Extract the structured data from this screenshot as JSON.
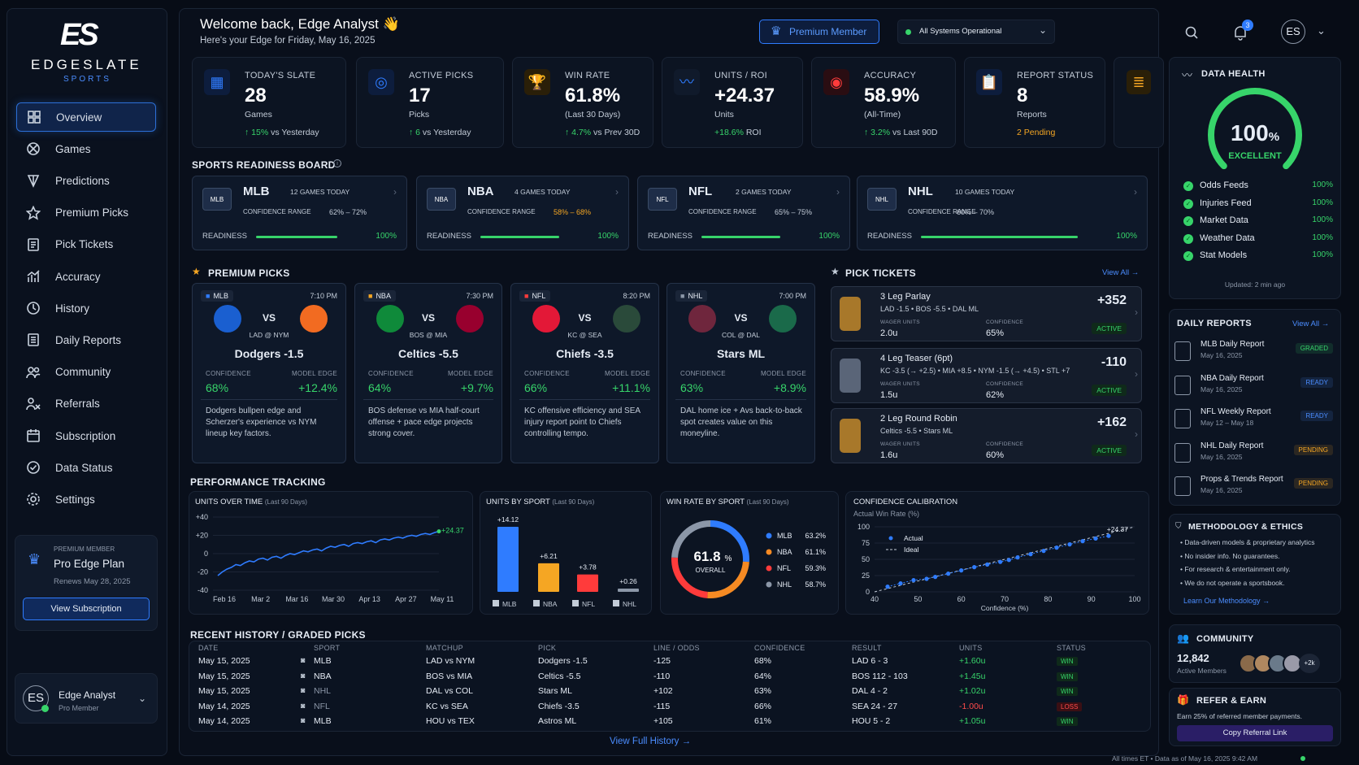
{
  "brand": {
    "logo": "ES",
    "name": "EDGESLATE",
    "sub": "SPORTS"
  },
  "nav": [
    {
      "label": "Overview",
      "icon": "grid-icon"
    },
    {
      "label": "Games",
      "icon": "games-icon"
    },
    {
      "label": "Predictions",
      "icon": "target-icon"
    },
    {
      "label": "Premium Picks",
      "icon": "star-icon"
    },
    {
      "label": "Pick Tickets",
      "icon": "ticket-icon"
    },
    {
      "label": "Accuracy",
      "icon": "chart-icon"
    },
    {
      "label": "History",
      "icon": "clock-icon"
    },
    {
      "label": "Daily Reports",
      "icon": "document-icon"
    },
    {
      "label": "Community",
      "icon": "users-icon"
    },
    {
      "label": "Referrals",
      "icon": "referral-icon"
    },
    {
      "label": "Subscription",
      "icon": "calendar-icon"
    },
    {
      "label": "Data Status",
      "icon": "check-circle-icon"
    },
    {
      "label": "Settings",
      "icon": "gear-icon"
    }
  ],
  "plan": {
    "kicker": "PREMIUM MEMBER",
    "name": "Pro Edge Plan",
    "renews": "Renews May 28, 2025",
    "button": "View Subscription"
  },
  "user": {
    "initials": "ES",
    "name": "Edge Analyst",
    "role": "Pro Member"
  },
  "header": {
    "welcome": "Welcome back, Edge Analyst 👋",
    "subtitle": "Here's your Edge for Friday, May 16, 2025",
    "premium": "Premium Member",
    "systems": "All Systems Operational",
    "notif_count": "3",
    "avatar": "ES"
  },
  "stats": [
    {
      "label": "TODAY'S SLATE",
      "value": "28",
      "unit": "Games",
      "change": "↑ 15%",
      "rest": " vs Yesterday",
      "icon": "calendar-icon"
    },
    {
      "label": "ACTIVE PICKS",
      "value": "17",
      "unit": "Picks",
      "change": "↑ 6",
      "rest": " vs Yesterday",
      "icon": "target-icon"
    },
    {
      "label": "WIN RATE",
      "value": "61.8%",
      "unit": "(Last 30 Days)",
      "change": "↑ 4.7%",
      "rest": " vs Prev 30D",
      "icon": "trophy-icon"
    },
    {
      "label": "UNITS / ROI",
      "value": "+24.37",
      "unit": "Units",
      "change": "+18.6%",
      "rest": " ROI",
      "icon": "pulse-icon"
    },
    {
      "label": "ACCURACY",
      "value": "58.9%",
      "unit": "(All-Time)",
      "change": "↑ 3.2%",
      "rest": " vs Last 90D",
      "icon": "bullseye-icon"
    },
    {
      "label": "REPORT STATUS",
      "value": "8",
      "unit": "Reports",
      "change": "2 Pending",
      "rest": "",
      "icon": "clipboard-icon"
    }
  ],
  "readiness": {
    "title": "SPORTS READINESS BOARD",
    "conf_label": "CONFIDENCE RANGE",
    "ready_label": "READINESS",
    "sports": [
      {
        "name": "MLB",
        "games": "12 GAMES TODAY",
        "range": "62% – 72%",
        "readiness": 100,
        "readiness_label": "100%"
      },
      {
        "name": "NBA",
        "games": "4 GAMES TODAY",
        "range": "58% – 68%",
        "readiness": 100,
        "readiness_label": "100%"
      },
      {
        "name": "NFL",
        "games": "2 GAMES TODAY",
        "range": "65% – 75%",
        "readiness": 100,
        "readiness_label": "100%"
      },
      {
        "name": "NHL",
        "games": "10 GAMES TODAY",
        "range": "60% – 70%",
        "readiness": 100,
        "readiness_label": "100%"
      }
    ]
  },
  "premium_picks": {
    "title": "PREMIUM PICKS",
    "conf_label": "CONFIDENCE",
    "edge_label": "MODEL EDGE",
    "vs": "VS",
    "items": [
      {
        "sport": "MLB",
        "time": "7:10 PM",
        "matchup": "LAD @ NYM",
        "line": "Dodgers -1.5",
        "confidence": "68%",
        "edge": "+12.4%",
        "desc": "Dodgers bullpen edge and Scherzer's experience vs NYM lineup key factors."
      },
      {
        "sport": "NBA",
        "time": "7:30 PM",
        "matchup": "BOS @ MIA",
        "line": "Celtics -5.5",
        "confidence": "64%",
        "edge": "+9.7%",
        "desc": "BOS defense vs MIA half-court offense + pace edge projects strong cover."
      },
      {
        "sport": "NFL",
        "time": "8:20 PM",
        "matchup": "KC @ SEA",
        "line": "Chiefs -3.5",
        "confidence": "66%",
        "edge": "+11.1%",
        "desc": "KC offensive efficiency and SEA injury report point to Chiefs controlling tempo."
      },
      {
        "sport": "NHL",
        "time": "7:00 PM",
        "matchup": "COL @ DAL",
        "line": "Stars ML",
        "confidence": "63%",
        "edge": "+8.9%",
        "desc": "DAL home ice + Avs back-to-back spot creates value on this moneyline."
      }
    ]
  },
  "tickets": {
    "title": "PICK TICKETS",
    "view_all": "View All →",
    "wager_label": "WAGER UNITS",
    "conf_label": "CONFIDENCE",
    "items": [
      {
        "name": "3 Leg Parlay",
        "legs": "LAD -1.5  •  BOS -5.5  •  DAL ML",
        "odds": "+352",
        "units": "2.0u",
        "confidence": "65%",
        "status": "ACTIVE"
      },
      {
        "name": "4 Leg Teaser (6pt)",
        "legs": "KC -3.5 (→ +2.5)  •  MIA +8.5  •  NYM -1.5 (→ +4.5)  •  STL +7",
        "odds": "-110",
        "units": "1.5u",
        "confidence": "62%",
        "status": "ACTIVE"
      },
      {
        "name": "2 Leg Round Robin",
        "legs": "Celtics -5.5  •  Stars ML",
        "odds": "+162",
        "units": "1.6u",
        "confidence": "60%",
        "status": "ACTIVE"
      }
    ]
  },
  "data_health": {
    "title": "DATA HEALTH",
    "score": "100",
    "score_unit": "%",
    "score_fraction": 1.0,
    "grade": "EXCELLENT",
    "feeds": [
      {
        "label": "Odds Feeds",
        "value": "100%"
      },
      {
        "label": "Injuries Feed",
        "value": "100%"
      },
      {
        "label": "Market Data",
        "value": "100%"
      },
      {
        "label": "Weather Data",
        "value": "100%"
      },
      {
        "label": "Stat Models",
        "value": "100%"
      }
    ],
    "updated": "Updated: 2 min ago"
  },
  "daily_reports": {
    "title": "DAILY REPORTS",
    "view_all": "View All →",
    "items": [
      {
        "name": "MLB Daily Report",
        "date": "May 16, 2025",
        "status": "GRADED",
        "color": "#37d46a"
      },
      {
        "name": "NBA Daily Report",
        "date": "May 16, 2025",
        "status": "READY",
        "color": "#4b8dff"
      },
      {
        "name": "NFL Weekly Report",
        "date": "May 12 – May 18",
        "status": "READY",
        "color": "#4b8dff"
      },
      {
        "name": "NHL Daily Report",
        "date": "May 16, 2025",
        "status": "PENDING",
        "color": "#f5a623"
      },
      {
        "name": "Props & Trends Report",
        "date": "May 16, 2025",
        "status": "PENDING",
        "color": "#f5a623"
      }
    ]
  },
  "methodology": {
    "title": "METHODOLOGY & ETHICS",
    "items": [
      "• Data-driven models & proprietary analytics",
      "• No insider info. No guarantees.",
      "• For research & entertainment only.",
      "• We do not operate a sportsbook."
    ],
    "link": "Learn Our Methodology →"
  },
  "community": {
    "title": "COMMUNITY",
    "count": "12,842",
    "label": "Active Members",
    "more": "+2k"
  },
  "refer": {
    "title": "REFER & EARN",
    "text": "Earn 25% of referred member payments.",
    "button": "Copy Referral Link"
  },
  "performance": {
    "title": "PERFORMANCE TRACKING",
    "units_title": "UNITS OVER TIME",
    "sport_title": "UNITS BY SPORT",
    "winrate_title": "WIN RATE BY SPORT",
    "calib_title": "CONFIDENCE CALIBRATION",
    "period": "(Last 90 Days)",
    "calib_sub": "Actual Win Rate (%)"
  },
  "chart_data": [
    {
      "type": "line",
      "title": "UNITS OVER TIME",
      "x_ticks": [
        "Feb 16",
        "Mar 2",
        "Mar 16",
        "Mar 30",
        "Apr 13",
        "Apr 27",
        "May 11"
      ],
      "y_ticks": [
        "+40",
        "+20",
        "0",
        "-20",
        "-40"
      ],
      "ylim": [
        -40,
        40
      ],
      "values": [
        -24,
        -20,
        -17,
        -15,
        -12,
        -13,
        -10,
        -8,
        -9,
        -6,
        -5,
        -7,
        -4,
        -3,
        -5,
        -2,
        0,
        -1,
        1,
        3,
        2,
        4,
        5,
        3,
        6,
        8,
        7,
        9,
        10,
        8,
        11,
        12,
        11,
        13,
        14,
        12,
        15,
        16,
        15,
        17,
        18,
        17,
        19,
        20,
        19,
        21,
        22,
        21,
        23,
        24.37
      ],
      "end_label": "+24.37"
    },
    {
      "type": "bar",
      "title": "UNITS BY SPORT",
      "categories": [
        "MLB",
        "NBA",
        "NFL",
        "NHL"
      ],
      "values": [
        14.12,
        6.21,
        3.78,
        0.26
      ],
      "labels": [
        "+14.12",
        "+6.21",
        "+3.78",
        "+0.26"
      ],
      "colors": [
        "#2f7cff",
        "#f5a623",
        "#ff3b3b",
        "#8c97a8"
      ]
    },
    {
      "type": "pie",
      "title": "WIN RATE BY SPORT",
      "center_value": "61.8",
      "center_unit": "%",
      "center_label": "OVERALL",
      "legend": [
        {
          "name": "MLB",
          "value": 63.2,
          "label": "63.2%",
          "color": "#2f7cff"
        },
        {
          "name": "NBA",
          "value": 61.1,
          "label": "61.1%",
          "color": "#f58a23"
        },
        {
          "name": "NFL",
          "value": 59.3,
          "label": "59.3%",
          "color": "#ff3b3b"
        },
        {
          "name": "NHL",
          "value": 58.7,
          "label": "58.7%",
          "color": "#8c97a8"
        }
      ]
    },
    {
      "type": "scatter",
      "title": "CONFIDENCE CALIBRATION",
      "xlabel": "Confidence (%)",
      "ylabel": "Actual Win Rate (%)",
      "xlim": [
        40,
        100
      ],
      "ylim": [
        0,
        100
      ],
      "x_ticks": [
        "40",
        "50",
        "60",
        "70",
        "80",
        "90",
        "100"
      ],
      "y_ticks": [
        "100",
        "75",
        "50",
        "25",
        "0"
      ],
      "series": [
        {
          "name": "Actual",
          "x": [
            43,
            46,
            49,
            52,
            54,
            57,
            60,
            63,
            66,
            69,
            71,
            73,
            76,
            79,
            82,
            85,
            88,
            91,
            94
          ],
          "y": [
            8,
            13,
            18,
            20,
            23,
            28,
            33,
            38,
            42,
            46,
            49,
            53,
            58,
            63,
            68,
            73,
            78,
            82,
            86
          ]
        },
        {
          "name": "Ideal",
          "x": [
            40,
            100
          ],
          "y": [
            0,
            100
          ]
        }
      ],
      "end_label": "+24.37"
    }
  ],
  "history": {
    "title": "RECENT HISTORY / GRADED PICKS",
    "columns": [
      "DATE",
      "SPORT",
      "MATCHUP",
      "PICK",
      "LINE / ODDS",
      "CONFIDENCE",
      "RESULT",
      "UNITS",
      "STATUS"
    ],
    "rows": [
      {
        "date": "May 15, 2025",
        "sport": "MLB",
        "matchup": "LAD vs NYM",
        "pick": "Dodgers -1.5",
        "line": "-125",
        "conf": "68%",
        "result": "LAD 6 - 3",
        "units": "+1.60u",
        "status": "WIN"
      },
      {
        "date": "May 15, 2025",
        "sport": "NBA",
        "matchup": "BOS vs MIA",
        "pick": "Celtics -5.5",
        "line": "-110",
        "conf": "64%",
        "result": "BOS 112 - 103",
        "units": "+1.45u",
        "status": "WIN"
      },
      {
        "date": "May 15, 2025",
        "sport": "NHL",
        "matchup": "DAL vs COL",
        "pick": "Stars ML",
        "line": "+102",
        "conf": "63%",
        "result": "DAL 4 - 2",
        "units": "+1.02u",
        "status": "WIN"
      },
      {
        "date": "May 14, 2025",
        "sport": "NFL",
        "matchup": "KC vs SEA",
        "pick": "Chiefs -3.5",
        "line": "-115",
        "conf": "66%",
        "result": "SEA 24 - 27",
        "units": "-1.00u",
        "status": "LOSS"
      },
      {
        "date": "May 14, 2025",
        "sport": "MLB",
        "matchup": "HOU vs TEX",
        "pick": "Astros ML",
        "line": "+105",
        "conf": "61%",
        "result": "HOU 5 - 2",
        "units": "+1.05u",
        "status": "WIN"
      }
    ],
    "link": "View Full History →"
  },
  "footer": "All times ET  •  Data as of May 16, 2025 9:42 AM"
}
